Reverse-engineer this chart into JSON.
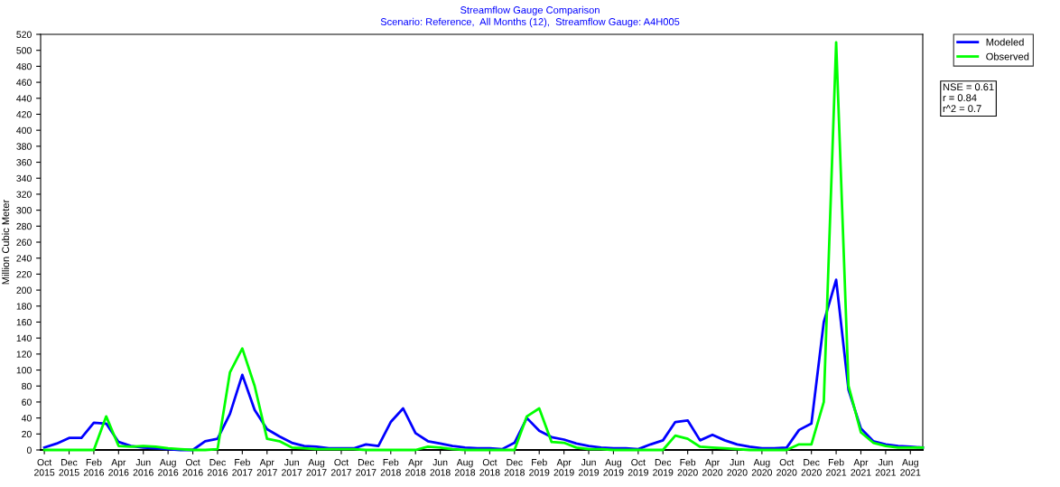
{
  "chart_data": {
    "type": "line",
    "title": "Streamflow Gauge Comparison",
    "subtitle": "Scenario: Reference,  All Months (12),  Streamflow Gauge: A4H005",
    "ylabel": "Million Cubic Meter",
    "categories": [
      "Oct\n2015",
      null,
      "Dec\n2015",
      null,
      "Feb\n2016",
      null,
      "Apr\n2016",
      null,
      "Jun\n2016",
      null,
      "Aug\n2016",
      null,
      "Oct\n2016",
      null,
      "Dec\n2016",
      null,
      "Feb\n2017",
      null,
      "Apr\n2017",
      null,
      "Jun\n2017",
      null,
      "Aug\n2017",
      null,
      "Oct\n2017",
      null,
      "Dec\n2017",
      null,
      "Feb\n2018",
      null,
      "Apr\n2018",
      null,
      "Jun\n2018",
      null,
      "Aug\n2018",
      null,
      "Oct\n2018",
      null,
      "Dec\n2018",
      null,
      "Feb\n2019",
      null,
      "Apr\n2019",
      null,
      "Jun\n2019",
      null,
      "Aug\n2019",
      null,
      "Oct\n2019",
      null,
      "Dec\n2019",
      null,
      "Feb\n2020",
      null,
      "Apr\n2020",
      null,
      "Jun\n2020",
      null,
      "Aug\n2020",
      null,
      "Oct\n2020",
      null,
      "Dec\n2020",
      null,
      "Feb\n2021",
      null,
      "Apr\n2021",
      null,
      "Jun\n2021",
      null,
      "Aug\n2021",
      null
    ],
    "series": [
      {
        "name": "Modeled",
        "color": "#0000ff",
        "values": [
          3,
          8,
          15,
          15,
          34,
          33,
          10,
          5,
          3,
          2,
          1,
          0,
          0,
          11,
          14,
          45,
          94,
          50,
          26,
          17,
          9,
          5,
          4,
          2,
          2,
          2,
          7,
          5,
          35,
          52,
          21,
          11,
          8,
          5,
          3,
          2,
          2,
          1,
          9,
          40,
          24,
          16,
          13,
          8,
          5,
          3,
          2,
          2,
          1,
          7,
          12,
          35,
          37,
          12,
          19,
          12,
          7,
          4,
          2,
          2,
          3,
          25,
          33,
          160,
          213,
          75,
          27,
          11,
          7,
          5,
          4,
          3
        ]
      },
      {
        "name": "Observed",
        "color": "#00ff00",
        "values": [
          0,
          0,
          0,
          0,
          0,
          42,
          5,
          4,
          5,
          4,
          2,
          1,
          0,
          0,
          1,
          97,
          127,
          80,
          14,
          11,
          3,
          2,
          1,
          1,
          1,
          1,
          0,
          0,
          0,
          0,
          0,
          4,
          3,
          1,
          0,
          0,
          0,
          0,
          0,
          42,
          52,
          10,
          9,
          3,
          1,
          1,
          0,
          0,
          0,
          0,
          0,
          18,
          14,
          4,
          3,
          2,
          1,
          0,
          0,
          0,
          0,
          7,
          7,
          60,
          510,
          80,
          22,
          9,
          5,
          3,
          3,
          3
        ]
      }
    ],
    "ylim": [
      0,
      520
    ],
    "yticks": [
      0,
      20,
      40,
      60,
      80,
      100,
      120,
      140,
      160,
      180,
      200,
      220,
      240,
      260,
      280,
      300,
      320,
      340,
      360,
      380,
      400,
      420,
      440,
      460,
      480,
      500,
      520
    ],
    "grid": false,
    "legend": "top right",
    "marker": "none",
    "line_style": "solid",
    "annotations": [
      "NSE = 0.61\nr = 0.84\nr^2 = 0.7"
    ]
  }
}
